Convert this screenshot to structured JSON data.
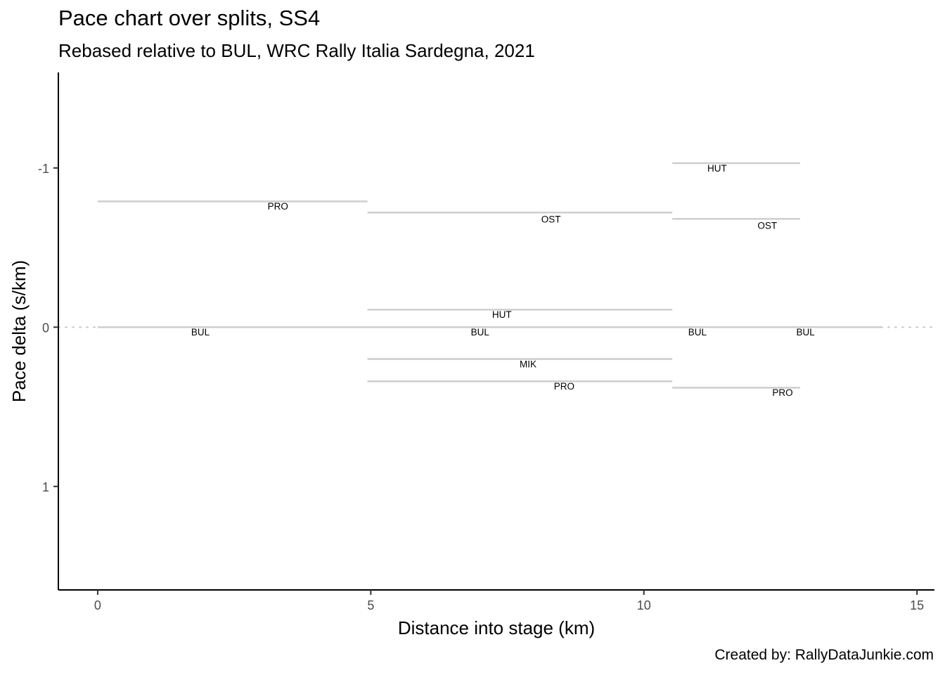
{
  "title": "Pace chart over splits, SS4",
  "subtitle": "Rebased relative to BUL, WRC Rally Italia Sardegna, 2021",
  "caption": "Created by: RallyDataJunkie.com",
  "chart_data": {
    "type": "line",
    "xlabel": "Distance into stage (km)",
    "ylabel": "Pace delta (s/km)",
    "xlim": [
      -0.72,
      15.32
    ],
    "ylim": [
      1.65,
      -1.6
    ],
    "y_reversed": true,
    "x_ticks": [
      0,
      5,
      10,
      15
    ],
    "x_tick_labels": [
      "0",
      "5",
      "10",
      "15"
    ],
    "y_ticks": [
      -1,
      0,
      1
    ],
    "y_tick_labels": [
      "-1",
      "0",
      "1"
    ],
    "reference_line": {
      "y": 0,
      "style": "dotted"
    },
    "line_color": "#cccccc",
    "grid": false,
    "segments": [
      {
        "driver": "PRO",
        "x_start": 0,
        "x_end": 4.94,
        "pace_delta": -0.79
      },
      {
        "driver": "BUL",
        "x_start": 0,
        "x_end": 4.94,
        "pace_delta": 0
      },
      {
        "driver": "OST",
        "x_start": 4.94,
        "x_end": 10.52,
        "pace_delta": -0.72
      },
      {
        "driver": "HUT",
        "x_start": 4.94,
        "x_end": 10.52,
        "pace_delta": -0.11
      },
      {
        "driver": "BUL",
        "x_start": 4.94,
        "x_end": 10.52,
        "pace_delta": 0
      },
      {
        "driver": "MIK",
        "x_start": 4.94,
        "x_end": 10.52,
        "pace_delta": 0.2
      },
      {
        "driver": "PRO",
        "x_start": 4.94,
        "x_end": 10.52,
        "pace_delta": 0.34
      },
      {
        "driver": "HUT",
        "x_start": 10.52,
        "x_end": 12.86,
        "pace_delta": -1.03
      },
      {
        "driver": "OST",
        "x_start": 10.52,
        "x_end": 12.86,
        "pace_delta": -0.68
      },
      {
        "driver": "BUL",
        "x_start": 10.52,
        "x_end": 12.86,
        "pace_delta": 0
      },
      {
        "driver": "PRO",
        "x_start": 10.52,
        "x_end": 12.86,
        "pace_delta": 0.38
      },
      {
        "driver": "BUL",
        "x_start": 12.86,
        "x_end": 14.35,
        "pace_delta": 0
      }
    ],
    "labels": [
      {
        "text": "PRO",
        "x": 3.3,
        "y": -0.76
      },
      {
        "text": "BUL",
        "x": 1.88,
        "y": 0.03
      },
      {
        "text": "OST",
        "x": 8.3,
        "y": -0.68
      },
      {
        "text": "HUT",
        "x": 7.4,
        "y": -0.08
      },
      {
        "text": "BUL",
        "x": 7.0,
        "y": 0.03
      },
      {
        "text": "MIK",
        "x": 7.88,
        "y": 0.23
      },
      {
        "text": "PRO",
        "x": 8.54,
        "y": 0.37
      },
      {
        "text": "HUT",
        "x": 11.34,
        "y": -1.0
      },
      {
        "text": "OST",
        "x": 12.26,
        "y": -0.64
      },
      {
        "text": "BUL",
        "x": 10.98,
        "y": 0.03
      },
      {
        "text": "BUL",
        "x": 12.96,
        "y": 0.03
      },
      {
        "text": "PRO",
        "x": 12.54,
        "y": 0.41
      }
    ]
  }
}
